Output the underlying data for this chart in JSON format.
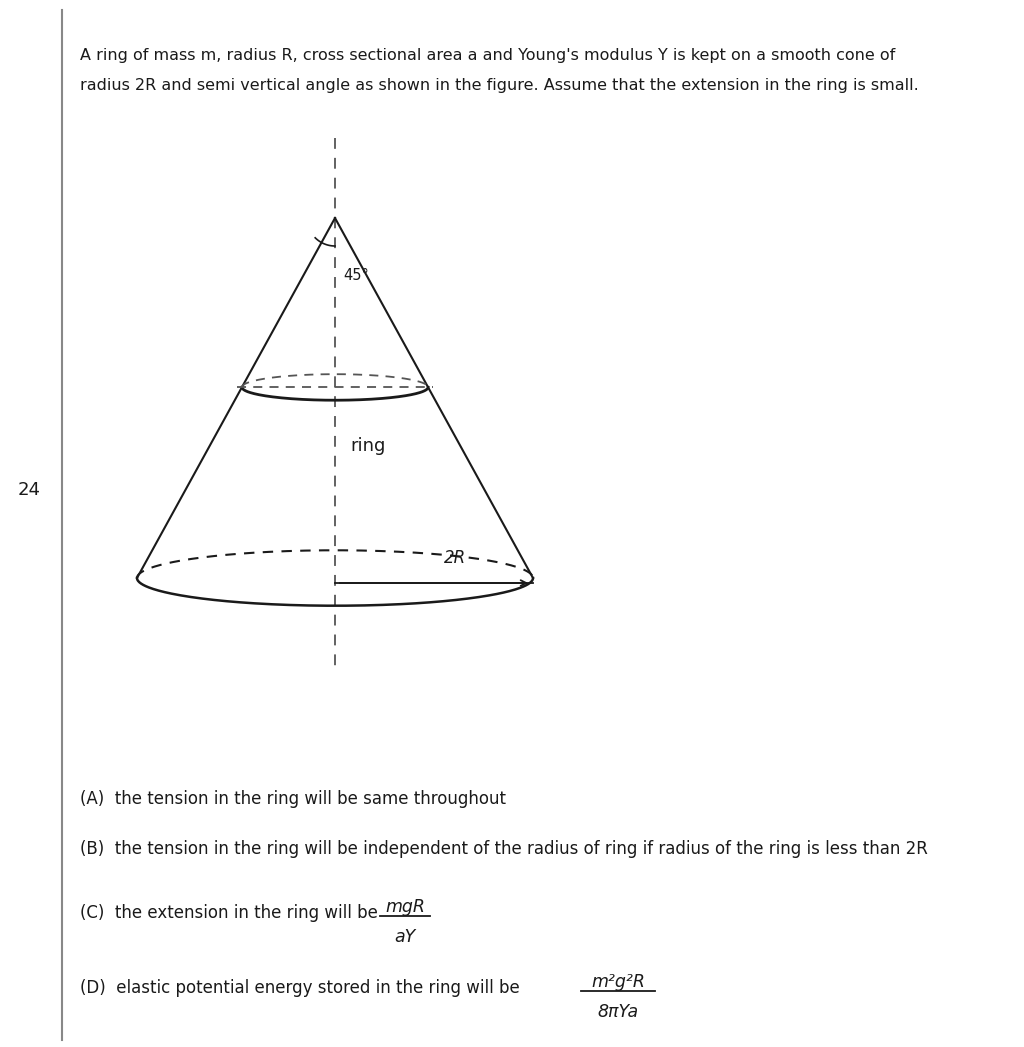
{
  "header_line1": "A ring of mass m, radius R, cross sectional area a and Young's modulus Y is kept on a smooth cone of",
  "header_line2": "radius 2R and semi vertical angle as shown in the figure. Assume that the extension in the ring is small.",
  "question_number": "24",
  "angle_label": "45°",
  "ring_label": "ring",
  "radius_label": "2R",
  "option_A": "(A)  the tension in the ring will be same throughout",
  "option_B": "(B)  the tension in the ring will be independent of the radius of ring if radius of the ring is less than 2R",
  "option_C_prefix": "(C)  the extension in the ring will be",
  "option_C_frac_num": "mgR",
  "option_C_frac_den": "aY",
  "option_D_prefix": "(D)  elastic potential energy stored in the ring will be",
  "option_D_frac_num": "m²g²R",
  "option_D_frac_den": "8πYa",
  "bg_color": "#ffffff",
  "text_color": "#1a1a1a",
  "cone_color": "#1a1a1a",
  "dashed_color": "#555555",
  "border_color": "#888888"
}
